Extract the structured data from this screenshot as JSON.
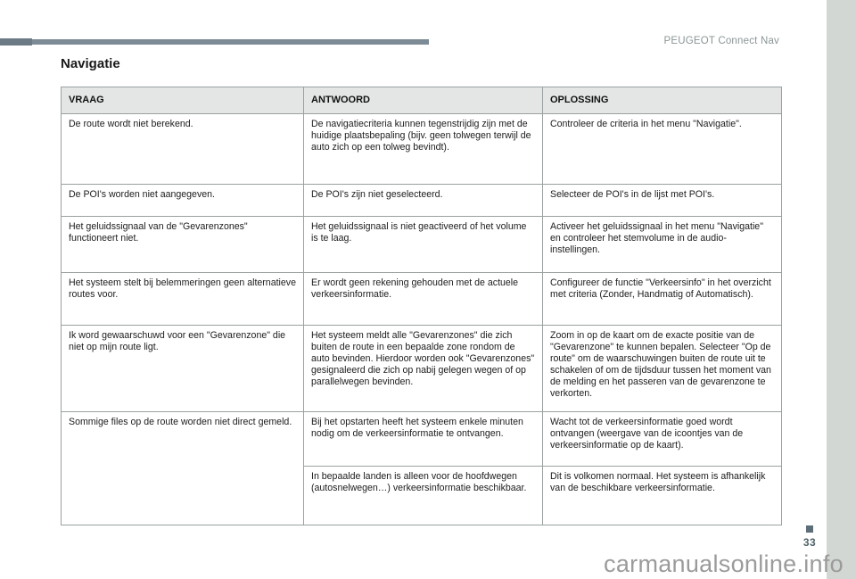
{
  "page": {
    "brand": "PEUGEOT Connect Nav",
    "heading": "Navigatie",
    "page_number": "33",
    "watermark": "carmanualsonline.info"
  },
  "table": {
    "columns": [
      "VRAAG",
      "ANTWOORD",
      "OPLOSSING"
    ],
    "rows": [
      {
        "vraag": "De route wordt niet berekend.",
        "antwoord": "De navigatiecriteria kunnen tegenstrijdig zijn met de huidige plaatsbepaling (bijv. geen tolwegen terwijl de auto zich op een tolweg bevindt).",
        "oplossing": "Controleer de criteria in het menu \"Navigatie\"."
      },
      {
        "vraag": "De POI's worden niet aangegeven.",
        "antwoord": "De POI's zijn niet geselecteerd.",
        "oplossing": "Selecteer de POI's in de lijst met POI's."
      },
      {
        "vraag": "Het geluidssignaal van de \"Gevarenzones\" functioneert niet.",
        "antwoord": "Het geluidssignaal is niet geactiveerd of het volume is te laag.",
        "oplossing": "Activeer het geluidssignaal in het menu \"Navigatie\" en controleer het stemvolume in de audio-instellingen."
      },
      {
        "vraag": "Het systeem stelt bij belemmeringen geen alternatieve routes voor.",
        "antwoord": "Er wordt geen rekening gehouden met de actuele verkeersinformatie.",
        "oplossing": "Configureer de functie \"Verkeersinfo\" in het overzicht met criteria (Zonder, Handmatig of Automatisch)."
      },
      {
        "vraag": "Ik word gewaarschuwd voor een \"Gevarenzone\" die niet op mijn route ligt.",
        "antwoord": "Het systeem meldt alle \"Gevarenzones\" die zich buiten de route in een bepaalde zone rondom de auto bevinden. Hierdoor worden ook \"Gevarenzones\" gesignaleerd die zich op nabij gelegen wegen of op parallelwegen bevinden.",
        "oplossing": "Zoom in op de kaart om de exacte positie van de \"Gevarenzone\" te kunnen bepalen. Selecteer \"Op de route\" om de waarschuwingen buiten de route uit te schakelen of om de tijdsduur tussen het moment van de melding en het passeren van de gevarenzone te verkorten."
      },
      {
        "vraag": "Sommige files op de route worden niet direct gemeld.",
        "antwoord": "Bij het opstarten heeft het systeem enkele minuten nodig om de verkeersinformatie te ontvangen.",
        "oplossing": "Wacht tot de verkeersinformatie goed wordt ontvangen (weergave van de icoontjes van de verkeersinformatie op de kaart)."
      },
      {
        "antwoord": "In bepaalde landen is alleen voor de hoofdwegen (autosnelwegen…) verkeersinformatie beschikbaar.",
        "oplossing": "Dit is volkomen normaal. Het systeem is afhankelijk van de beschikbare verkeersinformatie."
      }
    ]
  },
  "colors": {
    "accent_bar": "#7c8b95",
    "accent_bar_cap": "#6b7a85",
    "side_strip": "#d3d7d4",
    "table_header_bg": "#e4e6e6",
    "table_border": "#9aa0a0",
    "brand_text": "#8b9597",
    "page_number": "#4e6067",
    "marker_square": "#5e6e78",
    "watermark": "#9b9b9b"
  }
}
